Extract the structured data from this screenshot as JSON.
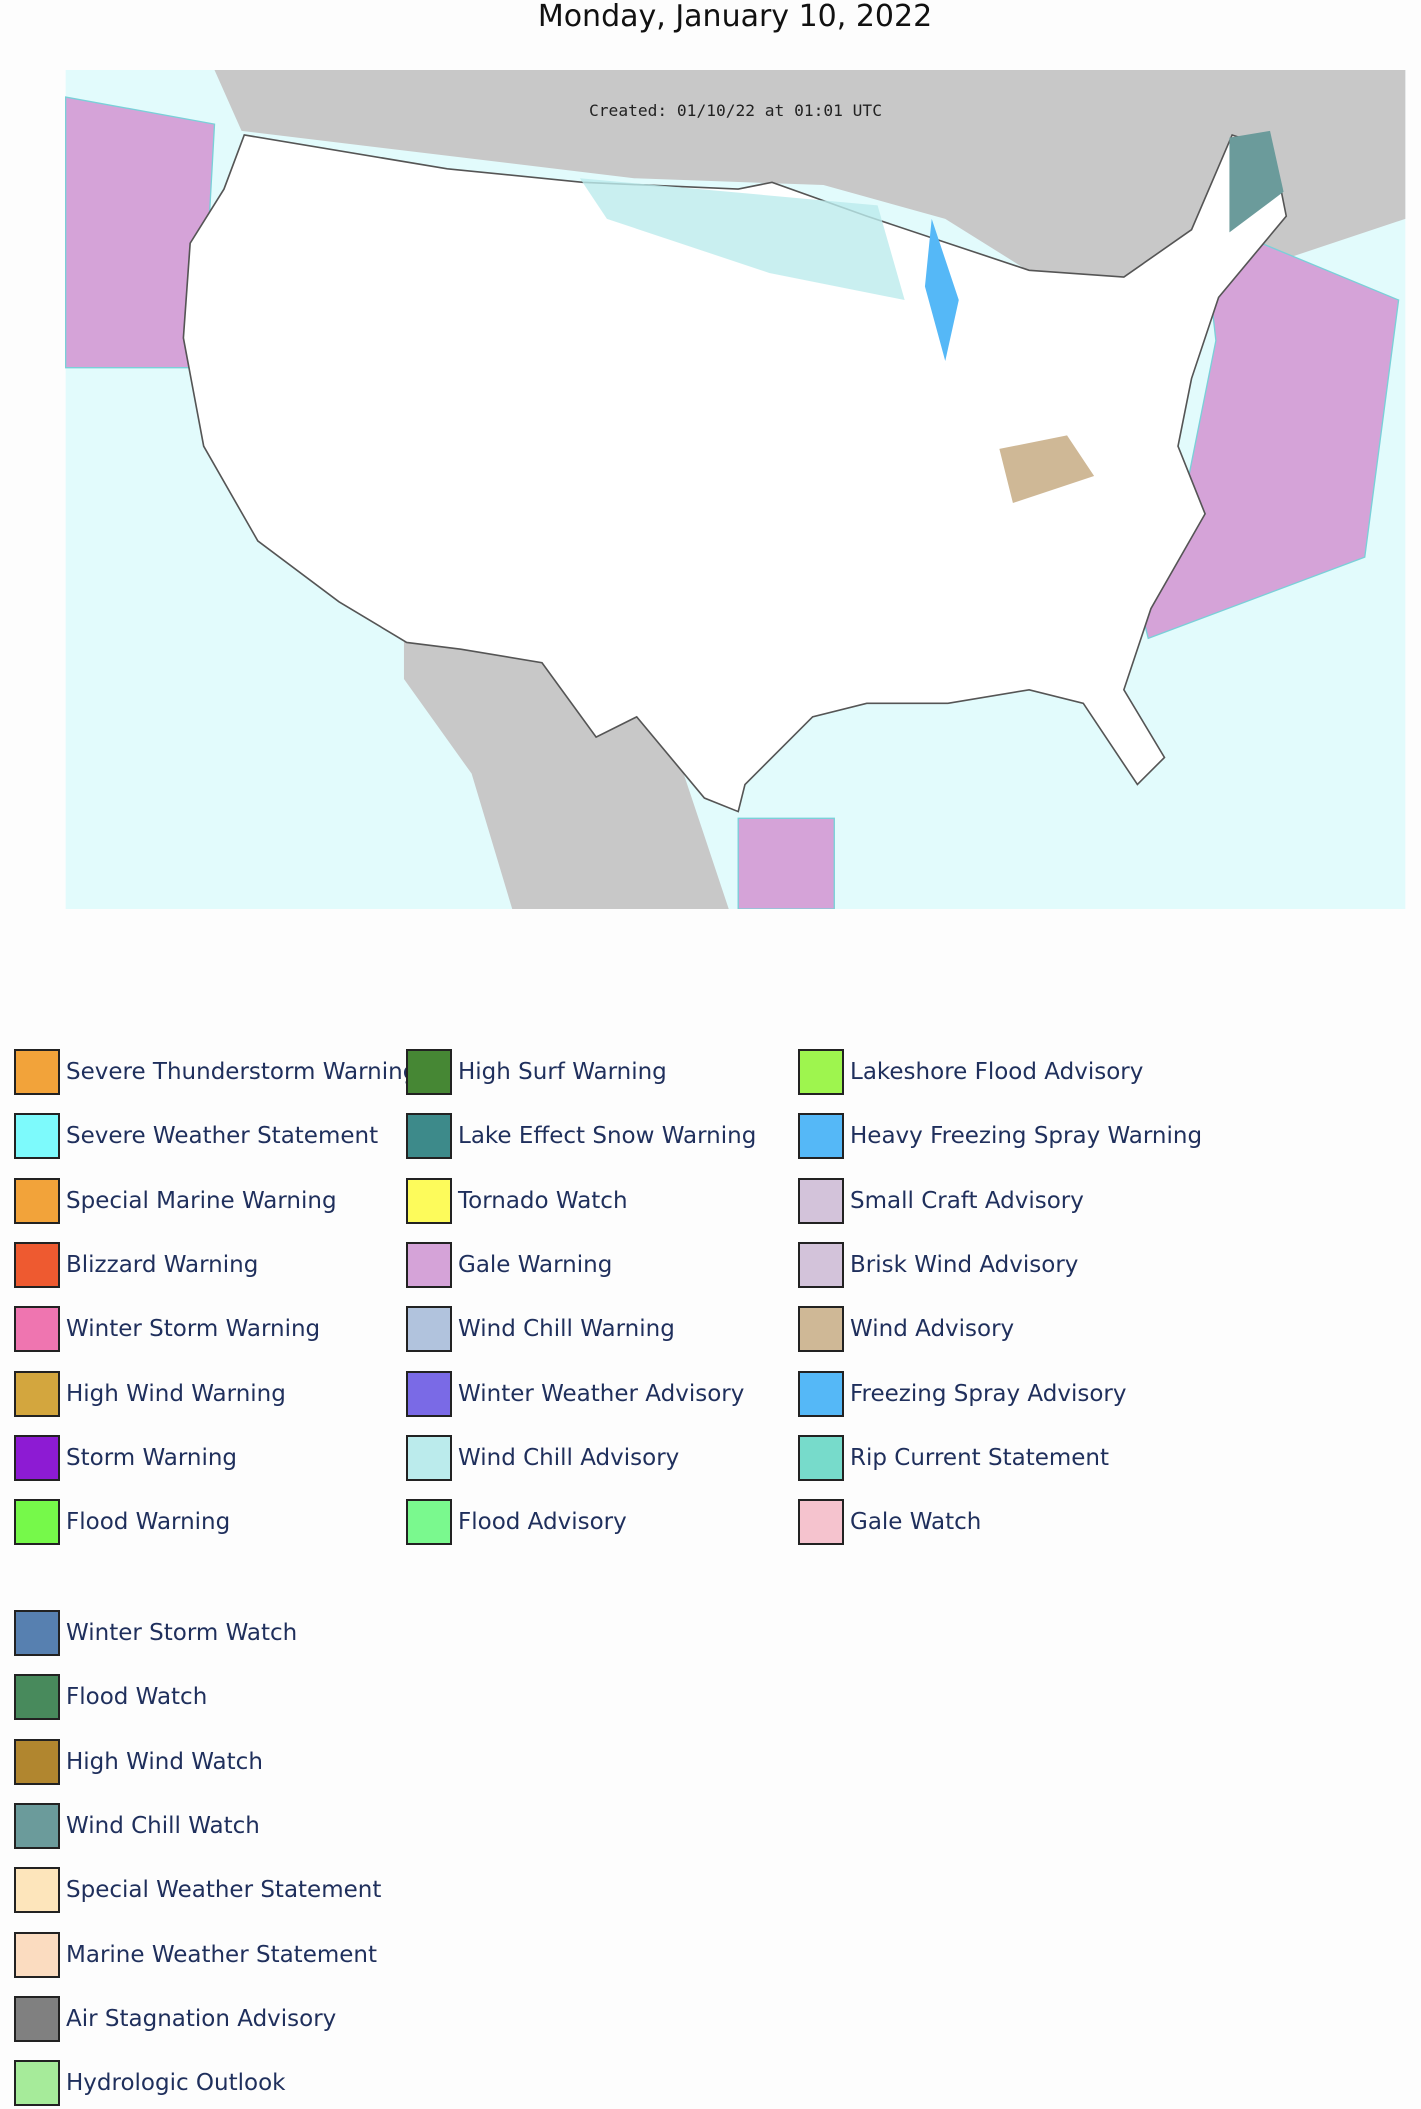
{
  "title": "Monday, January 10, 2022",
  "map": {
    "created": "Created: 01/10/22 at 01:01 UTC"
  },
  "legend": {
    "groups": [
      {
        "items": [
          {
            "label": "Severe Thunderstorm Warning",
            "color": "#f2a33a"
          },
          {
            "label": "Severe Weather Statement",
            "color": "#7dfafc"
          },
          {
            "label": "Special Marine Warning",
            "color": "#f2a33a"
          },
          {
            "label": "Blizzard Warning",
            "color": "#ee5a30"
          },
          {
            "label": "Winter Storm Warning",
            "color": "#ef75b0"
          },
          {
            "label": "High Wind Warning",
            "color": "#d3a63e"
          },
          {
            "label": "Storm Warning",
            "color": "#8d1bd3"
          },
          {
            "label": "Flood Warning",
            "color": "#76f94a"
          },
          {
            "label": "High Surf Warning",
            "color": "#468734"
          },
          {
            "label": "Lake Effect Snow Warning",
            "color": "#3d8a8a"
          },
          {
            "label": "Tornado Watch",
            "color": "#fdfb5b"
          },
          {
            "label": "Gale Warning",
            "color": "#d5a3d8"
          },
          {
            "label": "Wind Chill Warning",
            "color": "#b1c3dd"
          },
          {
            "label": "Winter Weather Advisory",
            "color": "#7a6ae6"
          },
          {
            "label": "Wind Chill Advisory",
            "color": "#bbebec"
          },
          {
            "label": "Flood Advisory",
            "color": "#7af98e"
          },
          {
            "label": "Lakeshore Flood Advisory",
            "color": "#9ef54e"
          },
          {
            "label": "Heavy Freezing Spray Warning",
            "color": "#55b8f7"
          },
          {
            "label": "Small Craft Advisory",
            "color": "#d3c3da"
          },
          {
            "label": "Brisk Wind Advisory",
            "color": "#d3c3da"
          },
          {
            "label": "Wind Advisory",
            "color": "#cfb896"
          },
          {
            "label": "Freezing Spray Advisory",
            "color": "#55b8f7"
          },
          {
            "label": "Rip Current Statement",
            "color": "#77dbcb"
          },
          {
            "label": "Gale Watch",
            "color": "#f5c3ce"
          }
        ]
      },
      {
        "items": [
          {
            "label": "Winter Storm Watch",
            "color": "#5780b0"
          },
          {
            "label": "Flood Watch",
            "color": "#488a5c"
          },
          {
            "label": "High Wind Watch",
            "color": "#b1862f"
          },
          {
            "label": "Wind Chill Watch",
            "color": "#6b9b9b"
          },
          {
            "label": "Special Weather Statement",
            "color": "#fde5bb"
          },
          {
            "label": "Marine Weather Statement",
            "color": "#fbdcc0"
          },
          {
            "label": "Air Stagnation Advisory",
            "color": "#808080"
          },
          {
            "label": "Hydrologic Outlook",
            "color": "#a6eb9a"
          }
        ]
      }
    ]
  }
}
